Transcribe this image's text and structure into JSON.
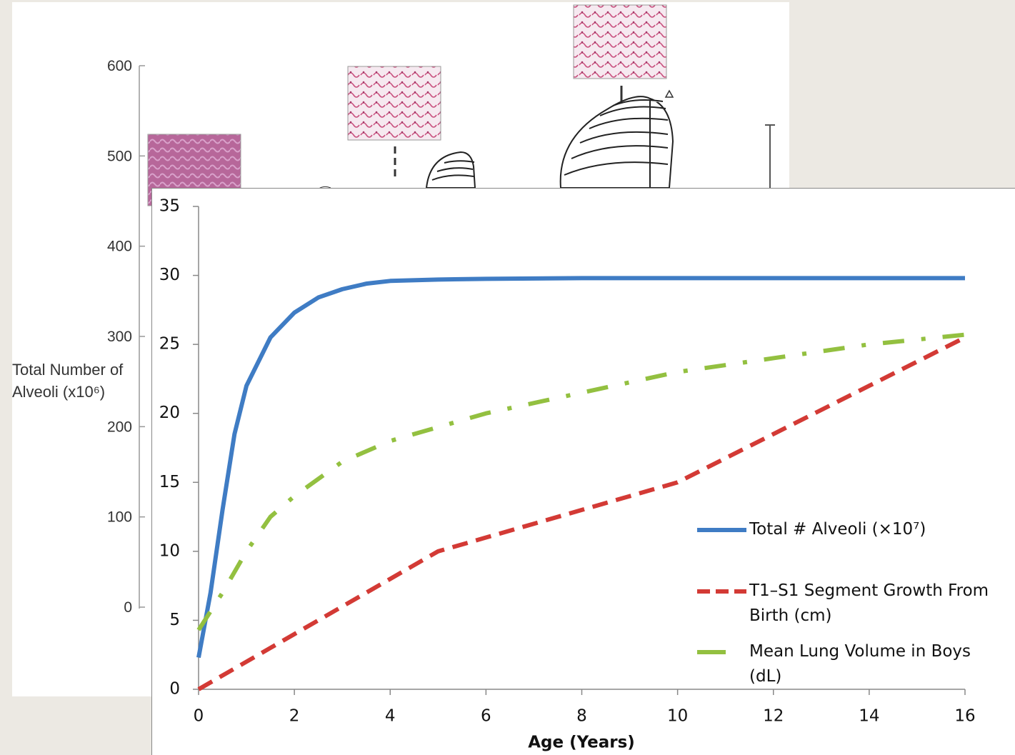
{
  "chart_data": [
    {
      "type": "figure",
      "ylabel": "Total Number of Alveoli (x10⁶)",
      "ylim": [
        0,
        600
      ],
      "yticks": [
        0,
        100,
        200,
        300,
        400,
        500,
        600
      ]
    },
    {
      "type": "line",
      "xlabel": "Age (Years)",
      "xlim": [
        0,
        16
      ],
      "xticks": [
        0,
        2,
        4,
        6,
        8,
        10,
        12,
        14,
        16
      ],
      "ylim": [
        0,
        35
      ],
      "yticks": [
        0,
        5,
        10,
        15,
        20,
        25,
        30,
        35
      ],
      "series": [
        {
          "name": "Total # Alveoli (×10⁷)",
          "color": "#3f7cc4",
          "style": "solid",
          "x": [
            0,
            0.25,
            0.5,
            0.75,
            1,
            1.5,
            2,
            2.5,
            3,
            3.5,
            4,
            5,
            6,
            8,
            10,
            12,
            14,
            16
          ],
          "values": [
            2.3,
            7,
            13,
            18.5,
            22,
            25.5,
            27.3,
            28.4,
            29,
            29.4,
            29.6,
            29.7,
            29.75,
            29.8,
            29.8,
            29.8,
            29.8,
            29.8
          ]
        },
        {
          "name": "T1–S1 Segment Growth From Birth (cm)",
          "color": "#d33a35",
          "style": "dashed",
          "x": [
            0,
            2,
            4,
            5,
            6,
            8,
            10,
            12,
            14,
            16
          ],
          "values": [
            0,
            4,
            8,
            10,
            11,
            13,
            15,
            18.5,
            22,
            25.5
          ]
        },
        {
          "name": "Mean Lung Volume in Boys (dL)",
          "color": "#93c040",
          "style": "dashdot",
          "x": [
            0,
            0.5,
            1,
            1.5,
            2,
            3,
            4,
            6,
            8,
            10,
            12,
            14,
            16
          ],
          "values": [
            4.3,
            7,
            10,
            12.5,
            14,
            16.5,
            18,
            20,
            21.5,
            23,
            24,
            25,
            25.7
          ]
        }
      ]
    }
  ]
}
